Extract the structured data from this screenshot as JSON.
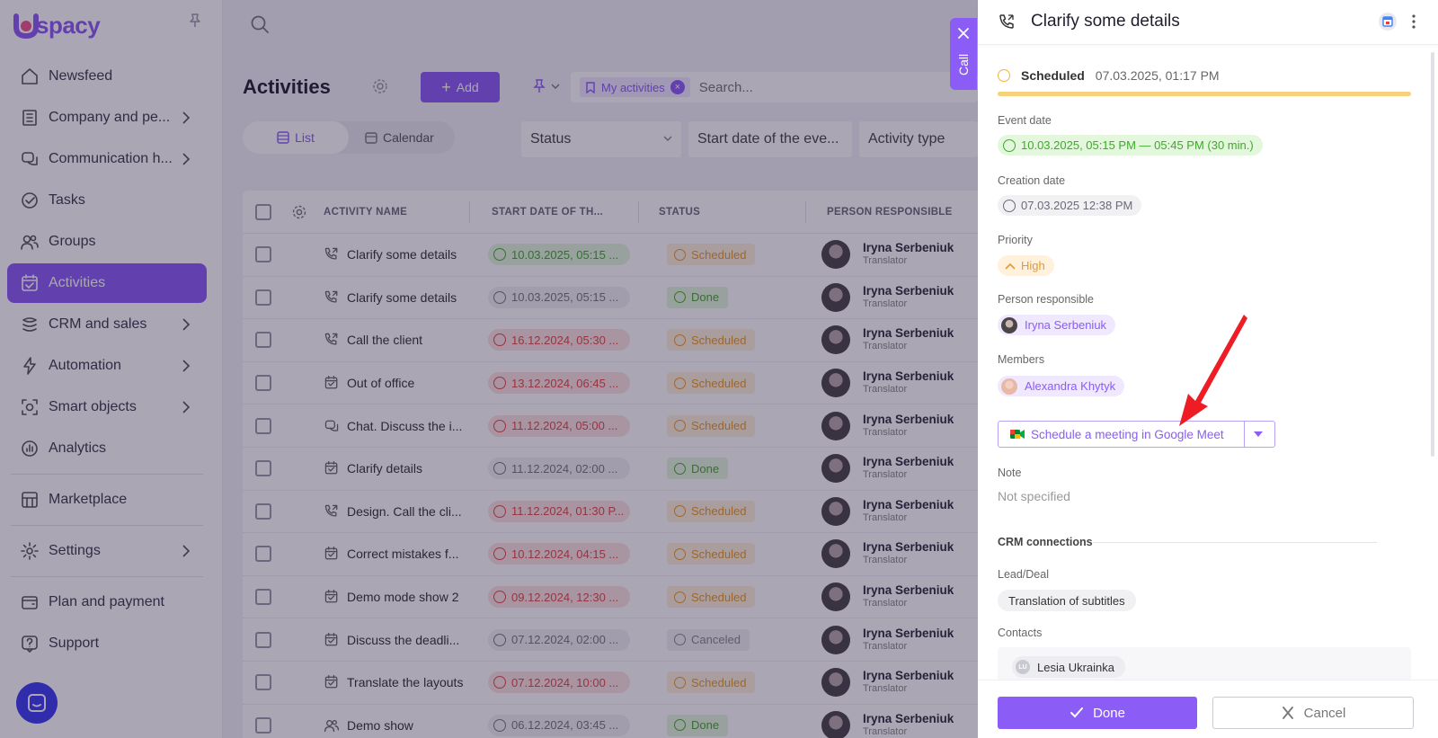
{
  "app": {
    "logo_text": "spacy",
    "logo_letter": "U"
  },
  "sidebar": {
    "items": [
      {
        "label": "Newsfeed",
        "icon": "home-icon",
        "chevron": false
      },
      {
        "label": "Company and pe...",
        "icon": "building-icon",
        "chevron": true
      },
      {
        "label": "Communication h...",
        "icon": "chat-icon",
        "chevron": true
      },
      {
        "label": "Tasks",
        "icon": "check-circle-icon",
        "chevron": false
      },
      {
        "label": "Groups",
        "icon": "users-icon",
        "chevron": false
      },
      {
        "label": "Activities",
        "icon": "calendar-check-icon",
        "chevron": false,
        "active": true
      },
      {
        "label": "CRM and sales",
        "icon": "crm-icon",
        "chevron": true
      },
      {
        "label": "Automation",
        "icon": "lightning-icon",
        "chevron": true
      },
      {
        "label": "Smart objects",
        "icon": "smart-object-icon",
        "chevron": true
      },
      {
        "label": "Analytics",
        "icon": "analytics-icon",
        "chevron": false
      },
      {
        "label": "Marketplace",
        "icon": "store-icon",
        "chevron": false
      },
      {
        "label": "Settings",
        "icon": "gear-icon",
        "chevron": true
      },
      {
        "label": "Plan and payment",
        "icon": "wallet-icon",
        "chevron": false
      },
      {
        "label": "Support",
        "icon": "help-icon",
        "chevron": false
      }
    ]
  },
  "main": {
    "title": "Activities",
    "add_label": "Add",
    "search": {
      "chip": "My activities",
      "placeholder": "Search..."
    },
    "view": {
      "list": "List",
      "calendar": "Calendar"
    },
    "filters": [
      "Status",
      "Start date of the eve...",
      "Activity type"
    ],
    "columns": [
      "ACTIVITY NAME",
      "START DATE OF TH...",
      "STATUS",
      "PERSON RESPONSIBLE"
    ],
    "rows": [
      {
        "name": "Clarify some details",
        "icon": "phone-icon",
        "date": "10.03.2025, 05:15 ...",
        "date_style": "green",
        "status": "Scheduled",
        "status_style": "sched",
        "person": "Iryna Serbeniuk",
        "role": "Translator"
      },
      {
        "name": "Clarify some details",
        "icon": "phone-icon",
        "date": "10.03.2025, 05:15 ...",
        "date_style": "grey",
        "status": "Done",
        "status_style": "done",
        "person": "Iryna Serbeniuk",
        "role": "Translator"
      },
      {
        "name": "Call the client",
        "icon": "phone-icon",
        "date": "16.12.2024, 05:30 ...",
        "date_style": "red",
        "status": "Scheduled",
        "status_style": "sched",
        "person": "Iryna Serbeniuk",
        "role": "Translator"
      },
      {
        "name": "Out of office",
        "icon": "calendar-icon",
        "date": "13.12.2024, 06:45 ...",
        "date_style": "red",
        "status": "Scheduled",
        "status_style": "sched",
        "person": "Iryna Serbeniuk",
        "role": "Translator"
      },
      {
        "name": "Chat. Discuss the i...",
        "icon": "chat-icon",
        "date": "11.12.2024, 05:00 ...",
        "date_style": "red",
        "status": "Scheduled",
        "status_style": "sched",
        "person": "Iryna Serbeniuk",
        "role": "Translator"
      },
      {
        "name": "Clarify details",
        "icon": "calendar-icon",
        "date": "11.12.2024, 02:00 ...",
        "date_style": "grey",
        "status": "Done",
        "status_style": "done",
        "person": "Iryna Serbeniuk",
        "role": "Translator"
      },
      {
        "name": "Design. Call the cli...",
        "icon": "phone-icon",
        "date": "11.12.2024, 01:30 P...",
        "date_style": "red",
        "status": "Scheduled",
        "status_style": "sched",
        "person": "Iryna Serbeniuk",
        "role": "Translator"
      },
      {
        "name": "Correct mistakes f...",
        "icon": "calendar-icon",
        "date": "10.12.2024, 04:15 ...",
        "date_style": "red",
        "status": "Scheduled",
        "status_style": "sched",
        "person": "Iryna Serbeniuk",
        "role": "Translator"
      },
      {
        "name": "Demo mode show 2",
        "icon": "calendar-icon",
        "date": "09.12.2024, 12:30 ...",
        "date_style": "red",
        "status": "Scheduled",
        "status_style": "sched",
        "person": "Iryna Serbeniuk",
        "role": "Translator"
      },
      {
        "name": "Discuss the deadli...",
        "icon": "calendar-icon",
        "date": "07.12.2024, 02:00 ...",
        "date_style": "grey",
        "status": "Canceled",
        "status_style": "cancel",
        "person": "Iryna Serbeniuk",
        "role": "Translator"
      },
      {
        "name": "Translate the layouts",
        "icon": "calendar-icon",
        "date": "07.12.2024, 10:00 ...",
        "date_style": "red",
        "status": "Scheduled",
        "status_style": "sched",
        "person": "Iryna Serbeniuk",
        "role": "Translator"
      },
      {
        "name": "Demo show",
        "icon": "users-icon",
        "date": "06.12.2024, 03:45 ...",
        "date_style": "grey",
        "status": "Done",
        "status_style": "done",
        "person": "Iryna Serbeniuk",
        "role": "Translator"
      }
    ]
  },
  "call_tab": {
    "label": "Call"
  },
  "panel": {
    "title": "Clarify some details",
    "status_label": "Scheduled",
    "status_date": "07.03.2025, 01:17 PM",
    "progress_fraction": 1.0,
    "event_date_label": "Event date",
    "event_date_value": "10.03.2025, 05:15 PM — 05:45 PM (30 min.)",
    "creation_date_label": "Creation date",
    "creation_date_value": "07.03.2025 12:38 PM",
    "priority_label": "Priority",
    "priority_value": "High",
    "person_label": "Person responsible",
    "person_value": "Iryna Serbeniuk",
    "members_label": "Members",
    "members_value": "Alexandra Khytyk",
    "gmeet_label": "Schedule a meeting in Google Meet",
    "note_label": "Note",
    "note_value": "Not specified",
    "crm_title": "CRM connections",
    "lead_label": "Lead/Deal",
    "lead_value": "Translation of subtitles",
    "contacts_label": "Contacts",
    "contact_value": "Lesia Ukrainka",
    "contact_initials": "LU",
    "done_label": "Done",
    "cancel_label": "Cancel"
  },
  "colors": {
    "accent": "#8b5cf6",
    "scheduled": "#e59a2c",
    "done": "#3daa2a",
    "overdue": "#e04848",
    "annotation_arrow": "#ee1c24"
  }
}
